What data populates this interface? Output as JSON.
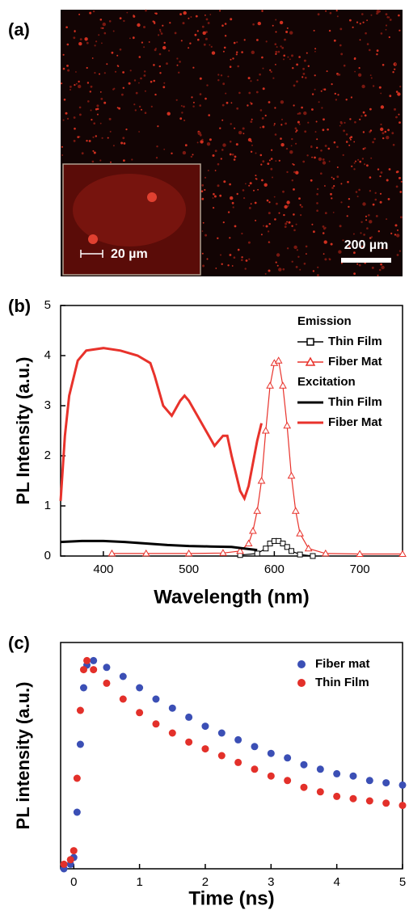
{
  "image_panel": {
    "panel_label": "(a)",
    "inset_scale": "20 µm",
    "scale": "200 µm"
  },
  "chart_data": [
    {
      "type": "line",
      "panel_label": "(b)",
      "xlabel": "Wavelength (nm)",
      "ylabel": "PL Intensity (a.u.)",
      "xlim": [
        350,
        750
      ],
      "xticks": [
        400,
        500,
        600,
        700
      ],
      "ylim": [
        0,
        5
      ],
      "yticks": [
        0,
        1,
        2,
        3,
        4,
        5
      ],
      "legend_position": "upper right",
      "series_groups": [
        {
          "name": "Emission",
          "series": [
            {
              "name": "Thin Film",
              "color": "#000000",
              "marker": "square",
              "x": [
                560,
                580,
                590,
                595,
                600,
                605,
                610,
                615,
                620,
                630,
                645
              ],
              "values": [
                0.02,
                0.05,
                0.15,
                0.25,
                0.3,
                0.3,
                0.25,
                0.18,
                0.1,
                0.03,
                0.0
              ]
            },
            {
              "name": "Fiber Mat",
              "color": "#e8322b",
              "marker": "triangle",
              "x": [
                410,
                450,
                500,
                540,
                560,
                570,
                575,
                580,
                585,
                590,
                595,
                600,
                605,
                610,
                615,
                620,
                625,
                630,
                640,
                660,
                700,
                750
              ],
              "values": [
                0.05,
                0.05,
                0.05,
                0.06,
                0.1,
                0.25,
                0.5,
                0.9,
                1.5,
                2.5,
                3.4,
                3.85,
                3.9,
                3.4,
                2.6,
                1.6,
                0.9,
                0.45,
                0.15,
                0.05,
                0.04,
                0.04
              ]
            }
          ]
        },
        {
          "name": "Excitation",
          "series": [
            {
              "name": "Thin Film",
              "color": "#000000",
              "marker": "none",
              "x": [
                350,
                375,
                400,
                425,
                450,
                475,
                500,
                525,
                550,
                565,
                580
              ],
              "values": [
                0.28,
                0.3,
                0.3,
                0.28,
                0.25,
                0.22,
                0.2,
                0.19,
                0.18,
                0.15,
                0.12
              ]
            },
            {
              "name": "Fiber Mat",
              "color": "#e8322b",
              "marker": "none",
              "x": [
                350,
                355,
                360,
                370,
                380,
                400,
                420,
                440,
                455,
                460,
                470,
                480,
                490,
                495,
                500,
                510,
                520,
                530,
                540,
                545,
                550,
                560,
                565,
                570,
                580,
                585
              ],
              "values": [
                1.1,
                2.4,
                3.2,
                3.9,
                4.1,
                4.15,
                4.1,
                4.0,
                3.85,
                3.6,
                3.0,
                2.8,
                3.1,
                3.2,
                3.1,
                2.8,
                2.5,
                2.2,
                2.4,
                2.4,
                2.0,
                1.3,
                1.15,
                1.4,
                2.3,
                2.65
              ]
            }
          ]
        }
      ]
    },
    {
      "type": "scatter",
      "panel_label": "(c)",
      "xlabel": "Time (ns)",
      "ylabel": "PL intensity (a.u.)",
      "xlim": [
        -0.2,
        5
      ],
      "xticks": [
        0,
        1,
        2,
        3,
        4,
        5
      ],
      "ylim": [
        0,
        1
      ],
      "legend_position": "upper right",
      "series": [
        {
          "name": "Fiber mat",
          "color": "#3b4fb5",
          "x": [
            -0.15,
            -0.05,
            0,
            0.05,
            0.1,
            0.15,
            0.2,
            0.3,
            0.5,
            0.75,
            1,
            1.25,
            1.5,
            1.75,
            2,
            2.25,
            2.5,
            2.75,
            3,
            3.25,
            3.5,
            3.75,
            4,
            4.25,
            4.5,
            4.75,
            5
          ],
          "values": [
            0.0,
            0.02,
            0.05,
            0.25,
            0.55,
            0.8,
            0.9,
            0.92,
            0.89,
            0.85,
            0.8,
            0.75,
            0.71,
            0.67,
            0.63,
            0.6,
            0.57,
            0.54,
            0.51,
            0.49,
            0.46,
            0.44,
            0.42,
            0.41,
            0.39,
            0.38,
            0.37
          ]
        },
        {
          "name": "Thin Film",
          "color": "#e3302a",
          "x": [
            -0.15,
            -0.05,
            0,
            0.05,
            0.1,
            0.15,
            0.2,
            0.3,
            0.5,
            0.75,
            1,
            1.25,
            1.5,
            1.75,
            2,
            2.25,
            2.5,
            2.75,
            3,
            3.25,
            3.5,
            3.75,
            4,
            4.25,
            4.5,
            4.75,
            5
          ],
          "values": [
            0.02,
            0.04,
            0.08,
            0.4,
            0.7,
            0.88,
            0.92,
            0.88,
            0.82,
            0.75,
            0.69,
            0.64,
            0.6,
            0.56,
            0.53,
            0.5,
            0.47,
            0.44,
            0.41,
            0.39,
            0.36,
            0.34,
            0.32,
            0.31,
            0.3,
            0.29,
            0.28
          ]
        }
      ]
    }
  ]
}
